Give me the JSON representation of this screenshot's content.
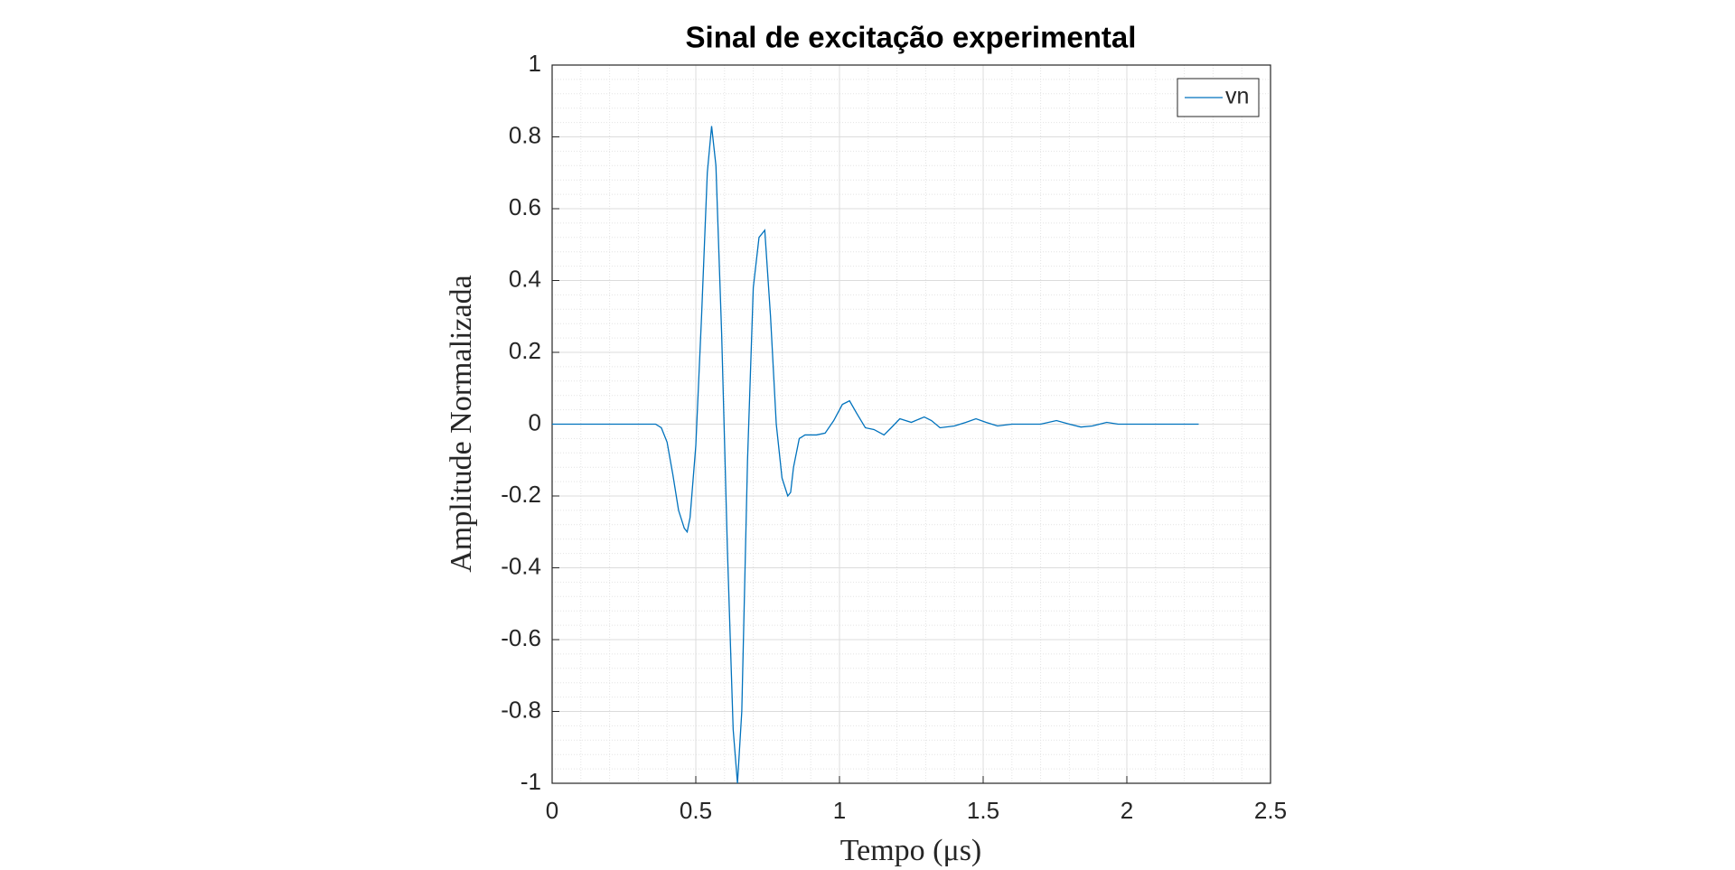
{
  "chart_data": {
    "type": "line",
    "title": "Sinal de excitação experimental",
    "x_label": "Tempo (μs)",
    "y_label": "Amplitude Normalizada",
    "x": [
      0,
      0.1,
      0.2,
      0.3,
      0.36,
      0.38,
      0.4,
      0.42,
      0.44,
      0.46,
      0.47,
      0.48,
      0.5,
      0.52,
      0.54,
      0.555,
      0.57,
      0.59,
      0.61,
      0.63,
      0.645,
      0.66,
      0.68,
      0.7,
      0.72,
      0.74,
      0.76,
      0.78,
      0.8,
      0.82,
      0.83,
      0.84,
      0.86,
      0.88,
      0.92,
      0.95,
      0.98,
      1.01,
      1.035,
      1.06,
      1.09,
      1.12,
      1.155,
      1.18,
      1.21,
      1.25,
      1.295,
      1.32,
      1.35,
      1.4,
      1.44,
      1.475,
      1.51,
      1.55,
      1.6,
      1.65,
      1.7,
      1.755,
      1.8,
      1.84,
      1.88,
      1.93,
      1.97,
      2.0,
      2.1,
      2.25
    ],
    "series": [
      {
        "name": "vn",
        "color": "#0072bd",
        "values": [
          0,
          0,
          0,
          0,
          0,
          -0.01,
          -0.05,
          -0.14,
          -0.24,
          -0.29,
          -0.3,
          -0.26,
          -0.06,
          0.3,
          0.7,
          0.83,
          0.72,
          0.25,
          -0.35,
          -0.85,
          -1.0,
          -0.8,
          -0.1,
          0.38,
          0.52,
          0.54,
          0.3,
          0.0,
          -0.15,
          -0.2,
          -0.19,
          -0.12,
          -0.04,
          -0.03,
          -0.03,
          -0.025,
          0.01,
          0.055,
          0.065,
          0.03,
          -0.01,
          -0.015,
          -0.03,
          -0.01,
          0.015,
          0.005,
          0.02,
          0.01,
          -0.01,
          -0.005,
          0.005,
          0.015,
          0.005,
          -0.005,
          0,
          0,
          0,
          0.01,
          0,
          -0.008,
          -0.005,
          0.005,
          0,
          0,
          0,
          0
        ]
      }
    ],
    "xlim": [
      0,
      2.5
    ],
    "xticks": [
      0,
      0.5,
      1,
      1.5,
      2,
      2.5
    ],
    "ylim": [
      -1,
      1
    ],
    "yticks": [
      -1,
      -0.8,
      -0.6,
      -0.4,
      -0.2,
      0,
      0.2,
      0.4,
      0.6,
      0.8,
      1
    ],
    "grid": true,
    "minor_grid": true,
    "legend": "northeast"
  }
}
